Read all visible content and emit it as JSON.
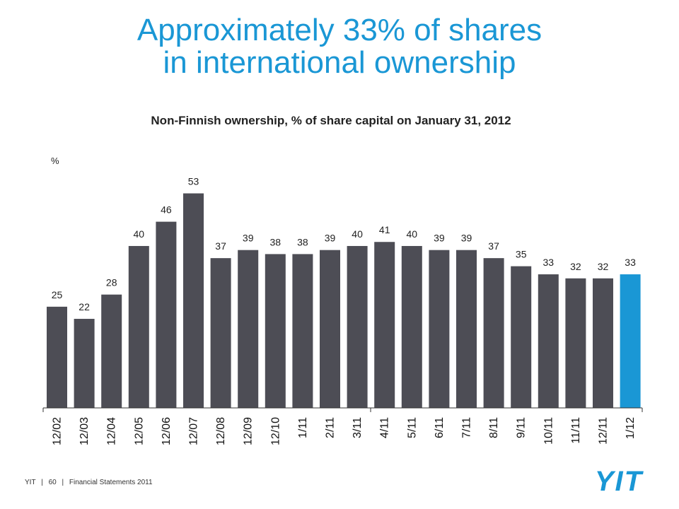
{
  "title_line1": "Approximately 33% of shares",
  "title_line2": "in international ownership",
  "subtitle": "Non-Finnish ownership, % of share capital on January 31, 2012",
  "footer": {
    "company": "YIT",
    "page": "60",
    "doc": "Financial Statements 2011"
  },
  "logo": {
    "text": "YIT",
    "color": "#1a97d5"
  },
  "chart_data": {
    "type": "bar",
    "title": "Non-Finnish ownership, % of share capital on January 31, 2012",
    "ylabel": "%",
    "categories": [
      "12/02",
      "12/03",
      "12/04",
      "12/05",
      "12/06",
      "12/07",
      "12/08",
      "12/09",
      "12/10",
      "1/11",
      "2/11",
      "3/11",
      "4/11",
      "5/11",
      "6/11",
      "7/11",
      "8/11",
      "9/11",
      "10/11",
      "11/11",
      "12/11",
      "1/12"
    ],
    "values": [
      25,
      22,
      28,
      40,
      46,
      53,
      37,
      39,
      38,
      38,
      39,
      40,
      41,
      40,
      39,
      39,
      37,
      35,
      33,
      32,
      32,
      33
    ],
    "ylim": [
      0,
      62
    ],
    "grid": false,
    "highlight_index": 21,
    "bar_color": "#4d4d55",
    "highlight_color": "#1a97d5"
  }
}
